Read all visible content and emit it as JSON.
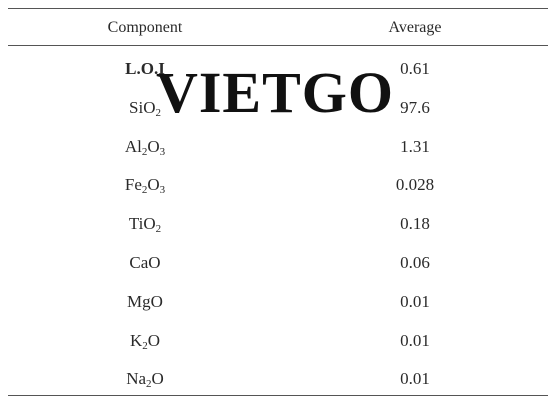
{
  "table": {
    "headers": {
      "component": "Component",
      "average": "Average"
    },
    "rows": [
      {
        "component_html": "L.O.I",
        "average": "0.61",
        "bold": true
      },
      {
        "component_html": "SiO<sub>2</sub>",
        "average": "97.6"
      },
      {
        "component_html": "Al<sub>2</sub>O<sub>3</sub>",
        "average": "1.31"
      },
      {
        "component_html": "Fe<sub>2</sub>O<sub>3</sub>",
        "average": "0.028"
      },
      {
        "component_html": "TiO<sub>2</sub>",
        "average": "0.18"
      },
      {
        "component_html": "CaO",
        "average": "0.06"
      },
      {
        "component_html": "MgO",
        "average": "0.01"
      },
      {
        "component_html": "K<sub>2</sub>O",
        "average": "0.01"
      },
      {
        "component_html": "Na<sub>2</sub>O",
        "average": "0.01"
      }
    ]
  },
  "watermark": {
    "text": "VIETGO"
  }
}
